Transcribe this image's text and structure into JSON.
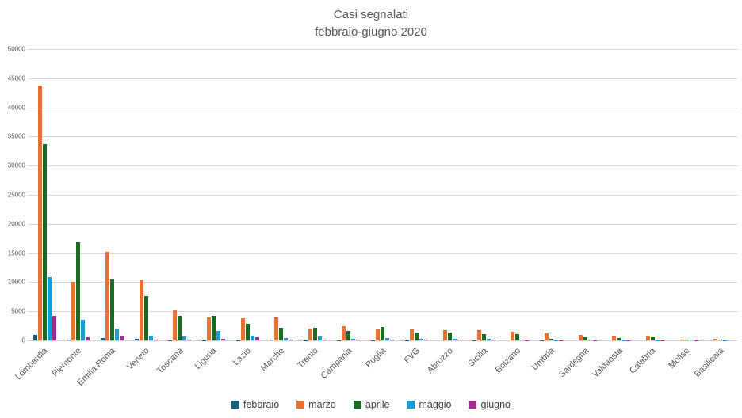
{
  "title": {
    "line1": "Casi segnalati",
    "line2": "febbraio-giugno 2020"
  },
  "colors": {
    "febbraio": "#156082",
    "marzo": "#E97132",
    "aprile": "#196B24",
    "maggio": "#0F9ED5",
    "giugno": "#A02B93",
    "grid": "#d9d9d9",
    "text": "#595959"
  },
  "y_axis": {
    "min": 0,
    "max": 50000,
    "step": 5000,
    "ticks": [
      "0",
      "5000",
      "10000",
      "15000",
      "20000",
      "25000",
      "30000",
      "35000",
      "40000",
      "45000",
      "50000"
    ]
  },
  "chart_data": {
    "type": "bar",
    "title": "Casi segnalati febbraio-giugno 2020",
    "xlabel": "",
    "ylabel": "",
    "ylim": [
      0,
      50000
    ],
    "grid": true,
    "legend_position": "bottom",
    "categories": [
      "Lombardia",
      "Piemonte",
      "Emilia Roma",
      "Veneto",
      "Toscana",
      "Liguria",
      "Lazio",
      "Marche",
      "Trento",
      "Campania",
      "Puglia",
      "FVG",
      "Abruzzo",
      "Sicilia",
      "Bolzano",
      "Umbria",
      "Sardegna",
      "Valdaosta",
      "Calabria",
      "Molise",
      "Basilicata"
    ],
    "series": [
      {
        "name": "febbraio",
        "color": "#156082",
        "values": [
          950,
          150,
          450,
          300,
          60,
          30,
          20,
          100,
          20,
          30,
          20,
          50,
          10,
          20,
          10,
          20,
          10,
          10,
          0,
          0,
          0
        ]
      },
      {
        "name": "marzo",
        "color": "#E97132",
        "values": [
          43700,
          10000,
          15200,
          10300,
          5100,
          3900,
          3850,
          3950,
          2100,
          2450,
          1950,
          1900,
          1750,
          1750,
          1450,
          1250,
          950,
          800,
          820,
          200,
          250
        ]
      },
      {
        "name": "aprile",
        "color": "#196B24",
        "values": [
          33700,
          16900,
          10400,
          7600,
          4200,
          4200,
          2850,
          2150,
          2200,
          1700,
          2250,
          1300,
          1300,
          1100,
          1150,
          250,
          580,
          450,
          540,
          160,
          120
        ]
      },
      {
        "name": "maggio",
        "color": "#0F9ED5",
        "values": [
          10900,
          3550,
          2000,
          850,
          700,
          1600,
          820,
          400,
          650,
          320,
          460,
          250,
          300,
          250,
          120,
          50,
          80,
          60,
          50,
          160,
          30
        ]
      },
      {
        "name": "giugno",
        "color": "#A02B93",
        "values": [
          4150,
          600,
          800,
          200,
          150,
          280,
          550,
          140,
          100,
          150,
          100,
          100,
          100,
          100,
          50,
          30,
          30,
          20,
          20,
          30,
          10
        ]
      }
    ]
  }
}
